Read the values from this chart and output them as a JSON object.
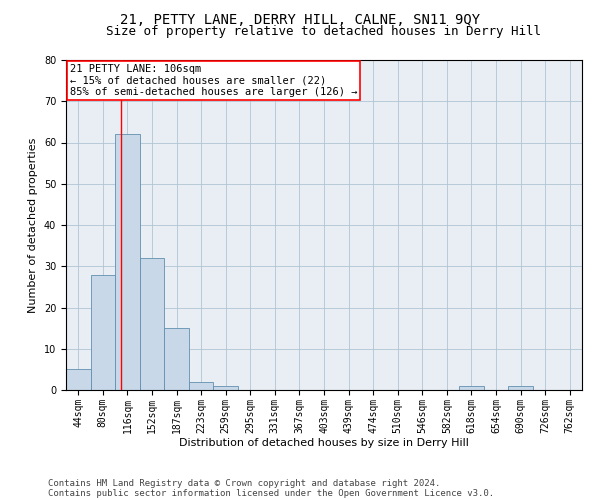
{
  "title": "21, PETTY LANE, DERRY HILL, CALNE, SN11 9QY",
  "subtitle": "Size of property relative to detached houses in Derry Hill",
  "xlabel": "Distribution of detached houses by size in Derry Hill",
  "ylabel": "Number of detached properties",
  "footnote1": "Contains HM Land Registry data © Crown copyright and database right 2024.",
  "footnote2": "Contains public sector information licensed under the Open Government Licence v3.0.",
  "bin_labels": [
    "44sqm",
    "80sqm",
    "116sqm",
    "152sqm",
    "187sqm",
    "223sqm",
    "259sqm",
    "295sqm",
    "331sqm",
    "367sqm",
    "403sqm",
    "439sqm",
    "474sqm",
    "510sqm",
    "546sqm",
    "582sqm",
    "618sqm",
    "654sqm",
    "690sqm",
    "726sqm",
    "762sqm"
  ],
  "bar_values": [
    5,
    28,
    62,
    32,
    15,
    2,
    1,
    0,
    0,
    0,
    0,
    0,
    0,
    0,
    0,
    0,
    1,
    0,
    1,
    0,
    0
  ],
  "bar_color": "#c8d8e8",
  "bar_edge_color": "#6090b0",
  "annotation_box_text": "21 PETTY LANE: 106sqm\n← 15% of detached houses are smaller (22)\n85% of semi-detached houses are larger (126) →",
  "annotation_box_color": "white",
  "annotation_box_edgecolor": "red",
  "annotation_line_color": "red",
  "ylim": [
    0,
    80
  ],
  "yticks": [
    0,
    10,
    20,
    30,
    40,
    50,
    60,
    70,
    80
  ],
  "grid_color": "#b0c4d4",
  "background_color": "#e8eef4",
  "title_fontsize": 10,
  "subtitle_fontsize": 9,
  "annotation_fontsize": 7.5,
  "xlabel_fontsize": 8,
  "ylabel_fontsize": 8,
  "tick_fontsize": 7,
  "footnote_fontsize": 6.5
}
